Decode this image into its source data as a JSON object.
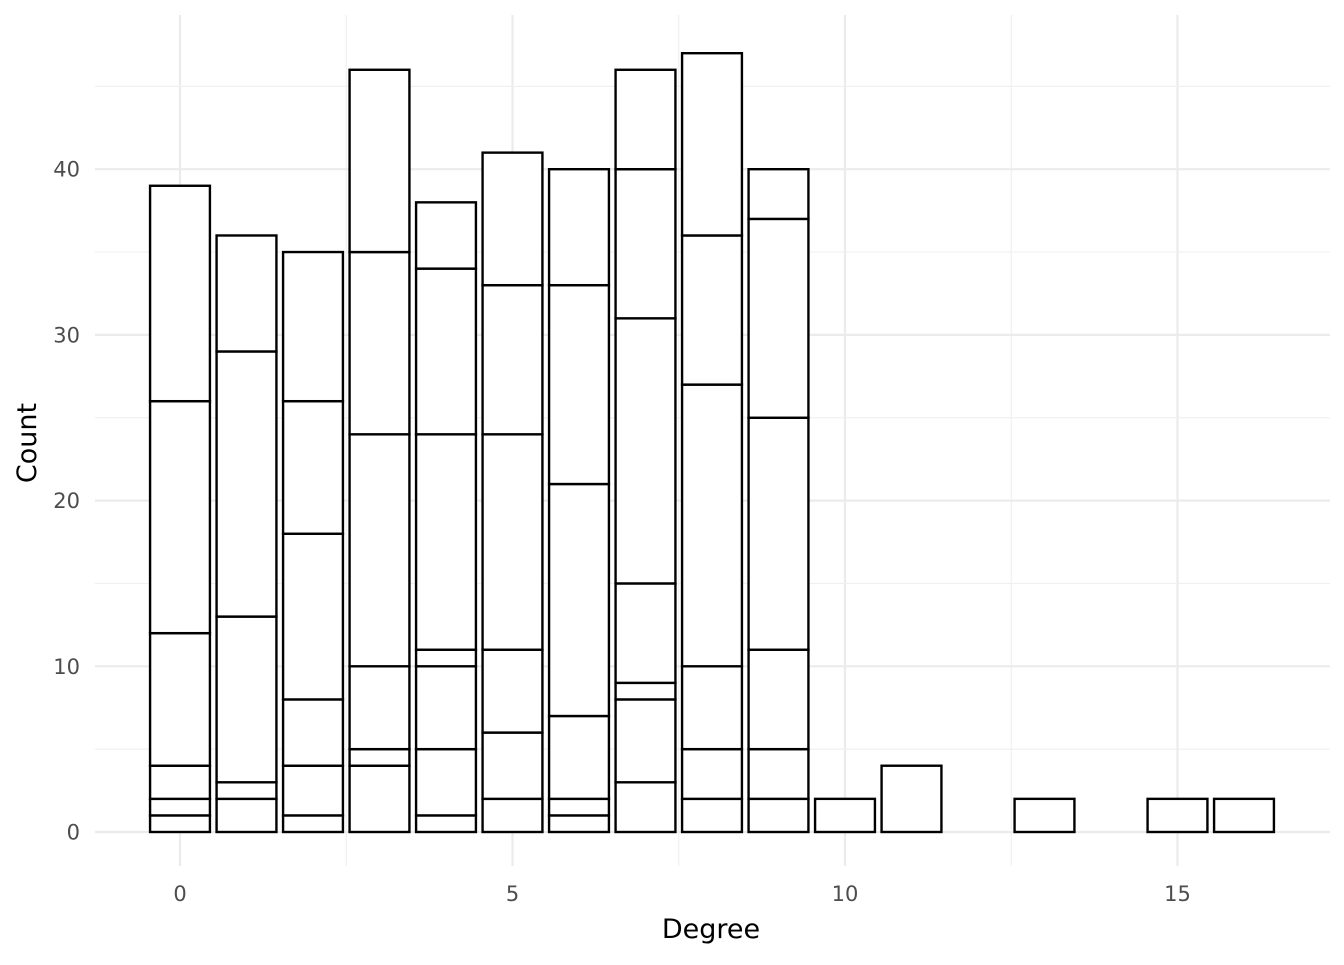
{
  "chart_data": {
    "type": "bar",
    "stacked": true,
    "title": "",
    "xlabel": "Degree",
    "ylabel": "Count",
    "xlim": [
      -0.5,
      16.5
    ],
    "ylim": [
      0,
      47
    ],
    "x_ticks": [
      0,
      5,
      10,
      15
    ],
    "y_ticks": [
      0,
      10,
      20,
      30,
      40
    ],
    "grid": true,
    "fill": "#ffffff",
    "stroke": "#000000",
    "x": [
      0,
      1,
      2,
      3,
      4,
      5,
      6,
      7,
      8,
      9,
      10,
      11,
      13,
      15,
      16
    ],
    "stack_segments": [
      [
        1,
        1,
        2,
        8,
        14,
        13
      ],
      [
        2,
        1,
        10,
        16,
        7
      ],
      [
        1,
        3,
        4,
        10,
        8,
        9
      ],
      [
        4,
        1,
        5,
        14,
        11,
        11
      ],
      [
        1,
        4,
        5,
        1,
        13,
        10,
        4
      ],
      [
        2,
        4,
        5,
        13,
        9,
        8
      ],
      [
        1,
        1,
        5,
        14,
        12,
        7
      ],
      [
        3,
        5,
        1,
        6,
        16,
        9,
        6
      ],
      [
        2,
        3,
        5,
        17,
        9,
        11
      ],
      [
        2,
        3,
        6,
        14,
        12,
        3
      ],
      [
        2
      ],
      [
        4
      ],
      [
        2
      ],
      [
        2
      ],
      [
        2
      ]
    ],
    "totals": [
      39,
      36,
      35,
      46,
      38,
      41,
      40,
      46,
      47,
      40,
      2,
      4,
      2,
      2,
      2
    ]
  }
}
